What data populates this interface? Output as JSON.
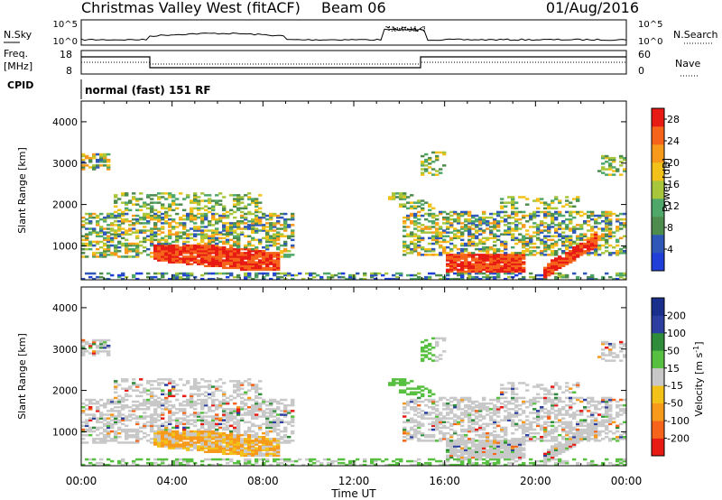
{
  "header": {
    "site": "Christmas Valley West (fitACF)",
    "beam": "Beam 06",
    "date": "01/Aug/2016"
  },
  "panels": {
    "nsky": {
      "label": "N.Sky",
      "ticks_left": [
        "10^5",
        "10^0"
      ],
      "ticks_right": [
        "10^5",
        "10^0"
      ],
      "right_label": "N.Search"
    },
    "freq": {
      "label_top": "Freq.",
      "label_bottom": "[MHz]",
      "ticks_left": [
        "18",
        "8"
      ],
      "ticks_right": [
        "60",
        "0"
      ],
      "right_label": "Nave"
    },
    "cpid": {
      "label": "CPID",
      "mode_text": "normal (fast) 151 RF"
    }
  },
  "colors": {
    "power": [
      "#1f3fd8",
      "#2f57b8",
      "#4e8c4e",
      "#4fa86a",
      "#a8c63c",
      "#f2c21a",
      "#f79a1c",
      "#f5641a",
      "#e81a14"
    ],
    "velocity": [
      "#e81a14",
      "#f5641a",
      "#f79a1c",
      "#f2c21a",
      "#c8c8c8",
      "#58c040",
      "#2f8c3a",
      "#2c3fa0",
      "#1a2f8c"
    ]
  },
  "chart_data": [
    {
      "type": "heatmap",
      "title": "Power",
      "xlabel": "Time UT",
      "ylabel": "Slant Range [km]",
      "x_ticks": [
        "00:00",
        "04:00",
        "08:00",
        "12:00",
        "16:00",
        "20:00",
        "00:00"
      ],
      "xlim_hours": [
        0,
        24
      ],
      "y_ticks": [
        1000,
        2000,
        3000,
        4000
      ],
      "ylim": [
        180,
        4500
      ],
      "colorbar": {
        "label": "Power [dB]",
        "ticks": [
          4,
          8,
          12,
          16,
          20,
          24,
          28
        ],
        "range": [
          0,
          30
        ]
      }
    },
    {
      "type": "heatmap",
      "title": "Velocity",
      "xlabel": "Time UT",
      "ylabel": "Slant Range [km]",
      "x_ticks": [
        "00:00",
        "04:00",
        "08:00",
        "12:00",
        "16:00",
        "20:00",
        "00:00"
      ],
      "xlim_hours": [
        0,
        24
      ],
      "y_ticks": [
        1000,
        2000,
        3000,
        4000
      ],
      "ylim": [
        180,
        4500
      ],
      "colorbar": {
        "label": "Velocity [m s^-1]",
        "ticks": [
          200,
          100,
          50,
          15,
          -15,
          -50,
          -100,
          -200
        ]
      }
    }
  ]
}
